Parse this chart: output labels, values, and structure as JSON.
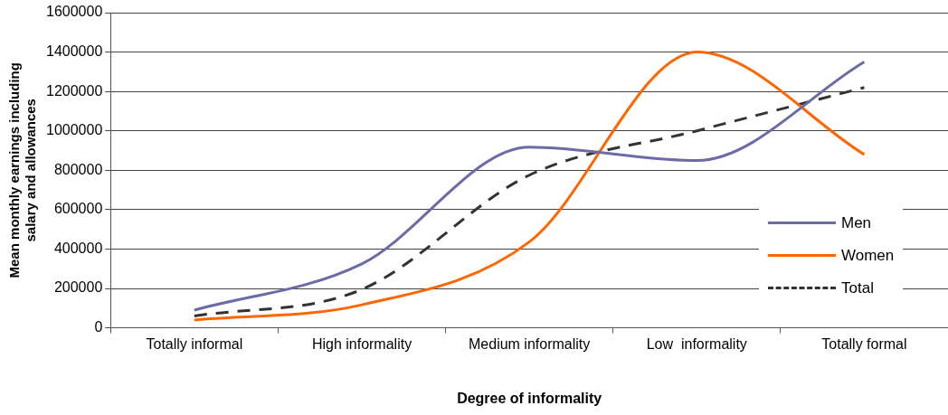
{
  "chart_data": {
    "type": "line",
    "xlabel": "Degree of informality",
    "ylabel": "Mean monthly earnings including salary and allowances",
    "categories": [
      "Totally informal",
      "High informality",
      "Medium informality",
      "Low  informality",
      "Totally formal"
    ],
    "series": [
      {
        "name": "Men",
        "color": "#6b6ba6",
        "values": [
          90000,
          325000,
          917000,
          849000,
          1350000
        ]
      },
      {
        "name": "Women",
        "color": "#ff6600",
        "values": [
          40000,
          117000,
          436000,
          1400000,
          880000
        ]
      },
      {
        "name": "Total",
        "color": "#333333",
        "line_style": "dashed",
        "values": [
          60000,
          195000,
          775000,
          1000000,
          1220000
        ]
      }
    ],
    "ylim": [
      0,
      1600000
    ],
    "yticks": [
      0,
      200000,
      400000,
      600000,
      800000,
      1000000,
      1200000,
      1400000,
      1600000
    ],
    "grid": "y",
    "legend": "bottom right",
    "marker": "none",
    "line_style": "solid"
  }
}
